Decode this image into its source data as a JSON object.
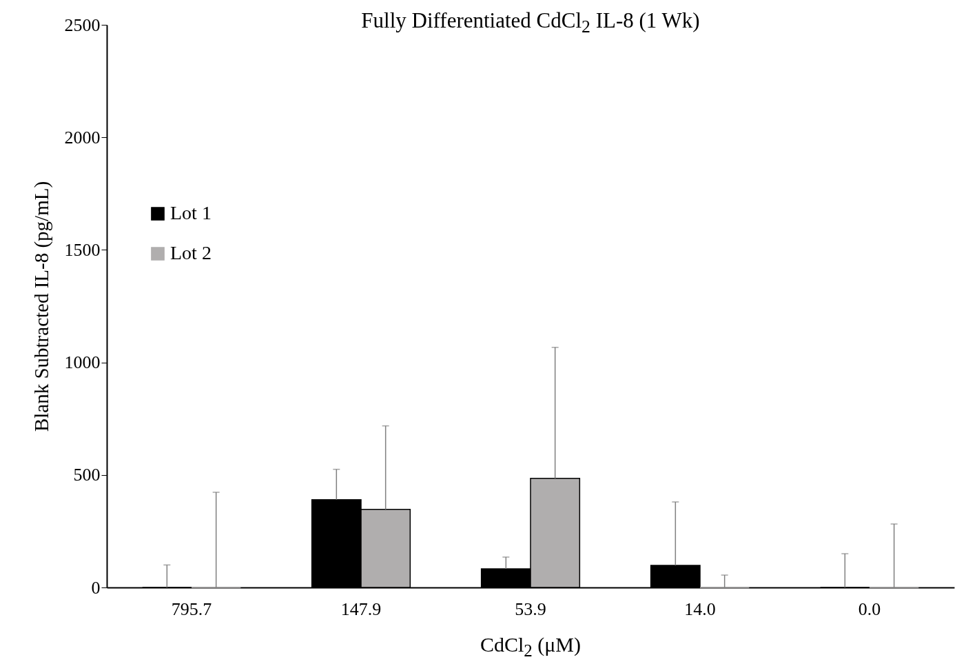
{
  "chart_data": {
    "type": "bar",
    "title": "Fully Differentiated CdCl$_{2}$ IL-8 (1 Wk)",
    "xlabel": "CdCl$_{2}$ (μM)",
    "ylabel": "Blank Subtracted IL-8 (pg/mL)",
    "categories": [
      "795.7",
      "147.9",
      "53.9",
      "14.0",
      "0.0"
    ],
    "series": [
      {
        "name": "Lot 1",
        "color": "#000000",
        "values": [
          0,
          390,
          83,
          98,
          0
        ],
        "errors": [
          [
            0,
            100
          ],
          [
            390,
            525
          ],
          [
            83,
            135
          ],
          [
            98,
            380
          ],
          [
            0,
            150
          ]
        ]
      },
      {
        "name": "Lot 2",
        "color": "#b0aeae",
        "values": [
          0,
          347,
          485,
          0,
          0
        ],
        "errors": [
          [
            0,
            423
          ],
          [
            347,
            718
          ],
          [
            485,
            1067
          ],
          [
            0,
            55
          ],
          [
            0,
            282
          ]
        ]
      }
    ],
    "ylim": [
      0,
      2500
    ],
    "yticks": [
      0,
      500,
      1000,
      1500,
      2000,
      2500
    ],
    "grid": false,
    "legend": "top left"
  }
}
